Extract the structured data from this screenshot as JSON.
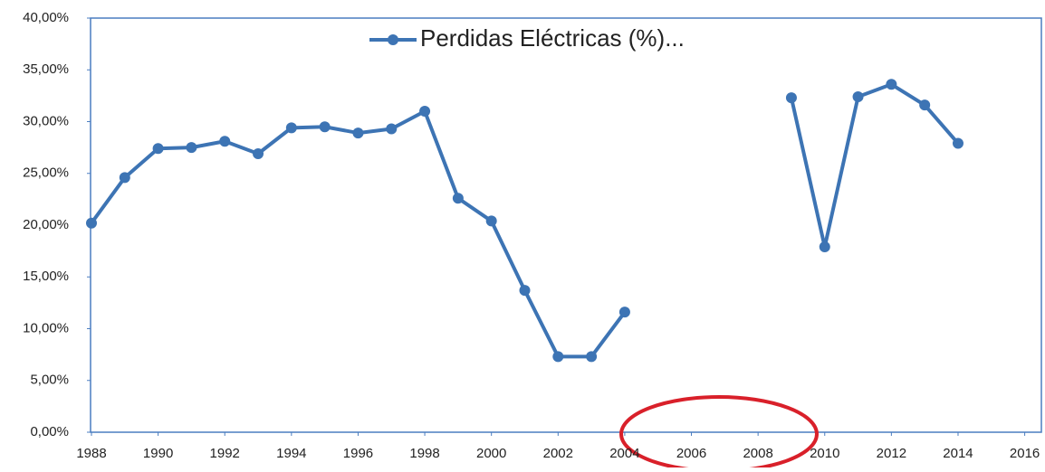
{
  "chart_data": {
    "type": "line",
    "x": [
      1988,
      1989,
      1990,
      1991,
      1992,
      1993,
      1994,
      1995,
      1996,
      1997,
      1998,
      1999,
      2000,
      2001,
      2002,
      2003,
      2004,
      2005,
      2006,
      2007,
      2008,
      2009,
      2010,
      2011,
      2012,
      2013,
      2014
    ],
    "series": [
      {
        "name": "Perdidas Eléctricas (%)...",
        "color": "#3d74b4",
        "values": [
          20.2,
          24.6,
          27.4,
          27.5,
          28.1,
          26.9,
          29.4,
          29.5,
          28.9,
          29.3,
          31.0,
          22.6,
          20.4,
          13.7,
          7.3,
          7.3,
          11.6,
          null,
          null,
          null,
          null,
          32.3,
          17.9,
          32.4,
          33.6,
          31.6,
          27.9
        ]
      }
    ],
    "xlim": [
      1988,
      2016.5
    ],
    "xticks": [
      1988,
      1990,
      1992,
      1994,
      1996,
      1998,
      2000,
      2002,
      2004,
      2006,
      2008,
      2010,
      2012,
      2014,
      2016
    ],
    "ylim": [
      0,
      40
    ],
    "yticks": [
      {
        "value": 0,
        "label": "0,00%"
      },
      {
        "value": 5,
        "label": "5,00%"
      },
      {
        "value": 10,
        "label": "10,00%"
      },
      {
        "value": 15,
        "label": "15,00%"
      },
      {
        "value": 20,
        "label": "20,00%"
      },
      {
        "value": 25,
        "label": "25,00%"
      },
      {
        "value": 30,
        "label": "30,00%"
      },
      {
        "value": 35,
        "label": "35,00%"
      },
      {
        "value": 40,
        "label": "40,00%"
      }
    ],
    "legend": "top"
  }
}
